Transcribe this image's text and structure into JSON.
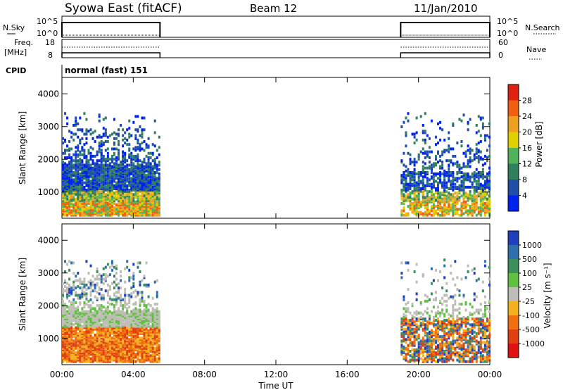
{
  "header": {
    "title": "Syowa East (fitACF)",
    "beam": "Beam 12",
    "date": "11/Jan/2010"
  },
  "mode_label": "normal (fast) 151",
  "chart_data": [
    {
      "type": "line",
      "panel": "noise",
      "left_label": "N.Sky",
      "right_label": "N.Search",
      "left_ticks": [
        "10^5",
        "10^0"
      ],
      "right_ticks": [
        "10^5",
        "10^0"
      ],
      "x_ticks": [
        "00:00",
        "04:00",
        "08:00",
        "12:00",
        "16:00",
        "20:00",
        "00:00"
      ],
      "x_range_hours": [
        0,
        24
      ],
      "segments_hours": [
        [
          0.0,
          5.5
        ],
        [
          19.0,
          24.0
        ]
      ]
    },
    {
      "type": "line",
      "panel": "frequency",
      "left_label_top": "Freq.",
      "left_label_bottom": "[MHz]",
      "right_label": "Nave",
      "left_ticks": [
        "18",
        "8"
      ],
      "right_ticks": [
        "60",
        "0"
      ],
      "segments_hours": [
        [
          0.0,
          5.5
        ],
        [
          19.0,
          24.0
        ]
      ]
    },
    {
      "type": "heatmap",
      "panel": "power",
      "ylabel": "Slant Range [km]",
      "y_ticks": [
        1000,
        2000,
        3000,
        4000
      ],
      "ylim": [
        200,
        4500
      ],
      "x_range_hours": [
        0,
        24
      ],
      "colorbar_label": "Power [dB]",
      "colorbar_ticks": [
        "4",
        "8",
        "12",
        "16",
        "20",
        "24",
        "28"
      ],
      "colorbar_colors": [
        "#0022ee",
        "#1f4fa8",
        "#2f7f5f",
        "#4fb35a",
        "#e0d000",
        "#f0a020",
        "#f06010",
        "#e02010"
      ],
      "data_intervals_hours": [
        [
          0.0,
          5.5
        ],
        [
          19.0,
          24.0
        ]
      ]
    },
    {
      "type": "heatmap",
      "panel": "velocity",
      "ylabel": "Slant Range [km]",
      "xlabel": "Time UT",
      "y_ticks": [
        1000,
        2000,
        3000,
        4000
      ],
      "ylim": [
        200,
        4500
      ],
      "x_range_hours": [
        0,
        24
      ],
      "colorbar_label": "Velocity [m s⁻¹]",
      "colorbar_ticks": [
        "1000",
        "500",
        "100",
        "25",
        "-25",
        "-100",
        "-500",
        "-1000"
      ],
      "colorbar_colors": [
        "#1f3fbf",
        "#2f6fae",
        "#3b8f5a",
        "#60c040",
        "#bdbdb5",
        "#f5b020",
        "#f07010",
        "#e04010",
        "#e01010"
      ],
      "data_intervals_hours": [
        [
          0.0,
          5.5
        ],
        [
          19.0,
          24.0
        ]
      ]
    }
  ]
}
